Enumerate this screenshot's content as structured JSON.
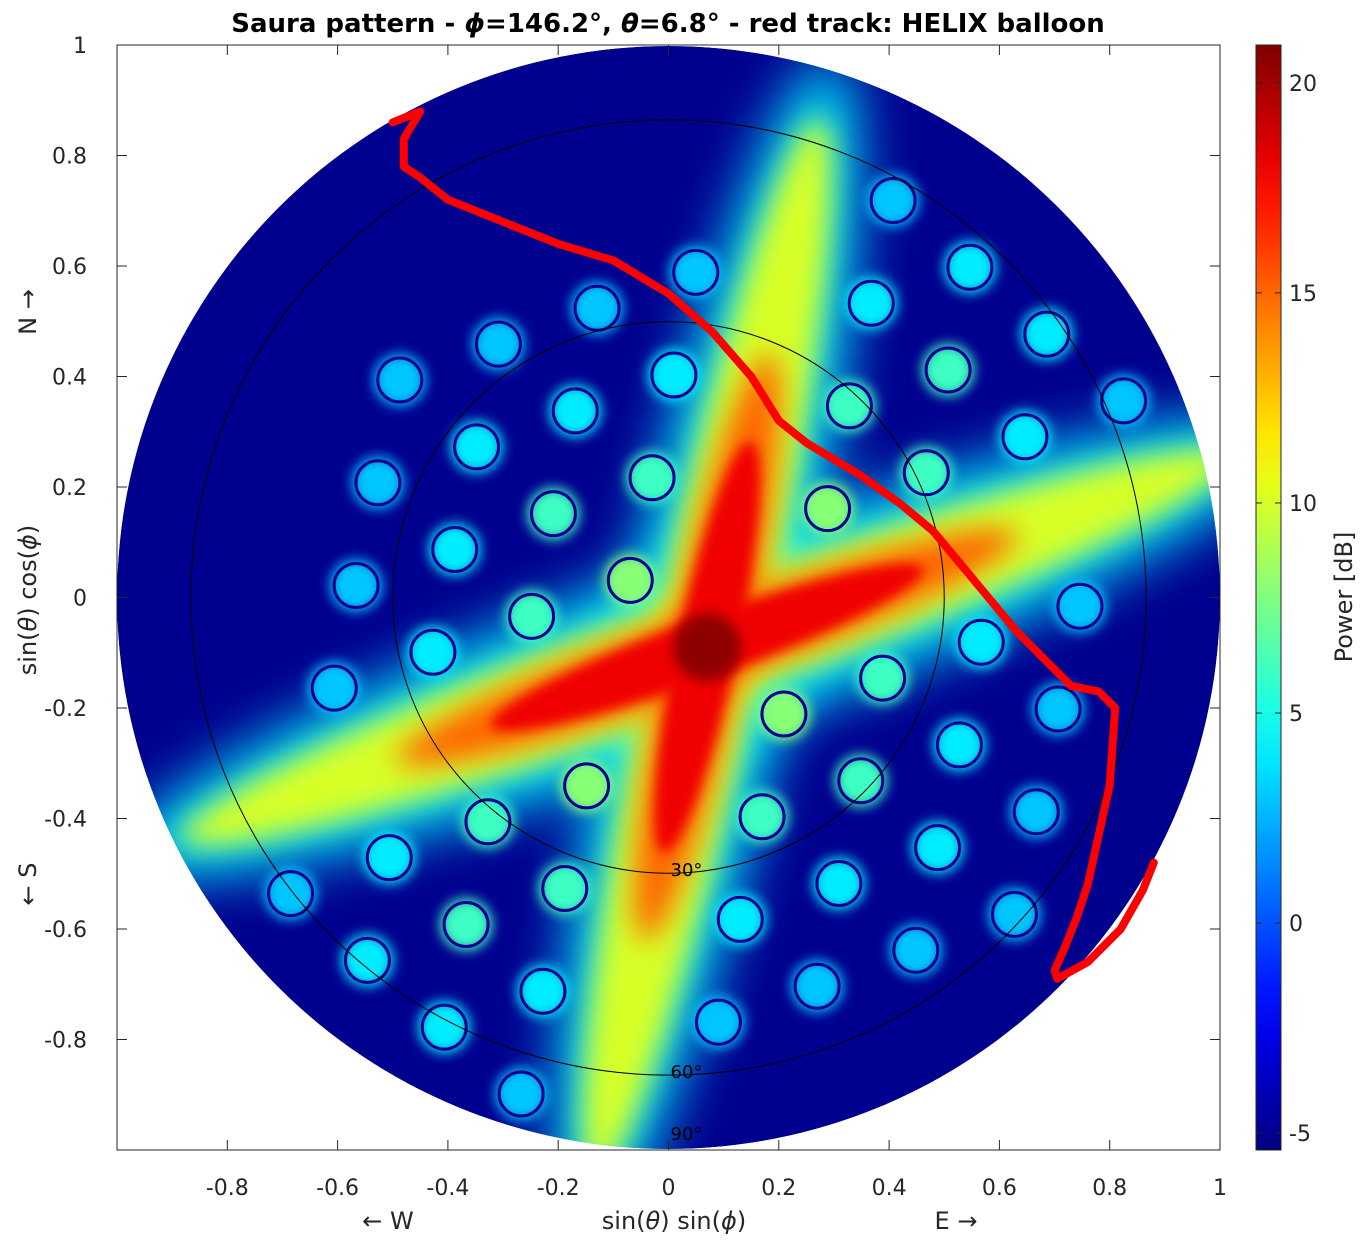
{
  "chart_data": {
    "type": "heatmap",
    "title": {
      "prefix": "Saura pattern - ",
      "phi_symbol": "ϕ",
      "phi_text": "=146.2°, ",
      "theta_symbol": "θ",
      "theta_text": "=6.8° - red track: HELIX balloon"
    },
    "xlabel": {
      "pre": "sin(",
      "s1": "θ",
      "mid": ") sin(",
      "s2": "ϕ",
      "post": ")"
    },
    "ylabel": {
      "pre": "sin(",
      "s1": "θ",
      "mid": ") cos(",
      "s2": "ϕ",
      "post": ")"
    },
    "xlim": [
      -1,
      1
    ],
    "ylim": [
      -1,
      1
    ],
    "x_ticks": [
      -0.8,
      -0.6,
      -0.4,
      -0.2,
      0,
      0.2,
      0.4,
      0.6,
      0.8,
      1
    ],
    "x_tick_labels": [
      "-0.8",
      "-0.6",
      "-0.4",
      "-0.2",
      "0",
      "0.2",
      "0.4",
      "0.6",
      "0.8",
      "1"
    ],
    "y_ticks": [
      1,
      0.8,
      0.6,
      0.4,
      0.2,
      0,
      -0.2,
      -0.4,
      -0.6,
      -0.8
    ],
    "y_tick_labels": [
      "1",
      "0.8",
      "0.6",
      "0.4",
      "0.2",
      "0",
      "-0.2",
      "-0.4",
      "-0.6",
      "-0.8"
    ],
    "direction_labels": {
      "north": "N →",
      "south": "← S",
      "west": "← W",
      "east": "E →"
    },
    "zenith_rings": [
      {
        "label": "30°",
        "radius": 0.5
      },
      {
        "label": "60°",
        "radius": 0.866
      },
      {
        "label": "90°",
        "radius": 1.0
      }
    ],
    "colorbar": {
      "label": "Power [dB]",
      "range": [
        -5.4,
        20.9
      ],
      "ticks": [
        -5,
        0,
        5,
        10,
        15,
        20
      ],
      "tick_labels": [
        "-5",
        "0",
        "5",
        "10",
        "15",
        "20"
      ],
      "colormap": "jet"
    },
    "pattern": {
      "peak_db": 20.5,
      "floor_db": -5,
      "peak_center": [
        0.07,
        -0.09
      ],
      "arm_directions": [
        "N-S tilted ~12° toward E",
        "E-W tilted ~20°"
      ]
    },
    "track": {
      "name": "HELIX balloon",
      "color": "#ff0000",
      "x": [
        -0.5,
        -0.45,
        -0.48,
        -0.48,
        -0.45,
        -0.4,
        -0.3,
        -0.2,
        -0.1,
        0.0,
        0.08,
        0.15,
        0.2,
        0.25,
        0.3,
        0.35,
        0.42,
        0.48,
        0.53,
        0.58,
        0.63,
        0.68,
        0.73,
        0.78,
        0.81,
        0.805,
        0.8,
        0.78,
        0.76,
        0.74,
        0.72,
        0.7,
        0.705,
        0.76,
        0.82,
        0.86,
        0.88
      ],
      "y": [
        0.86,
        0.88,
        0.83,
        0.78,
        0.76,
        0.72,
        0.68,
        0.64,
        0.61,
        0.55,
        0.48,
        0.4,
        0.32,
        0.28,
        0.25,
        0.22,
        0.17,
        0.12,
        0.06,
        0.0,
        -0.06,
        -0.11,
        -0.16,
        -0.17,
        -0.2,
        -0.27,
        -0.34,
        -0.43,
        -0.52,
        -0.58,
        -0.63,
        -0.675,
        -0.69,
        -0.66,
        -0.6,
        -0.53,
        -0.48
      ]
    },
    "grid": false
  }
}
